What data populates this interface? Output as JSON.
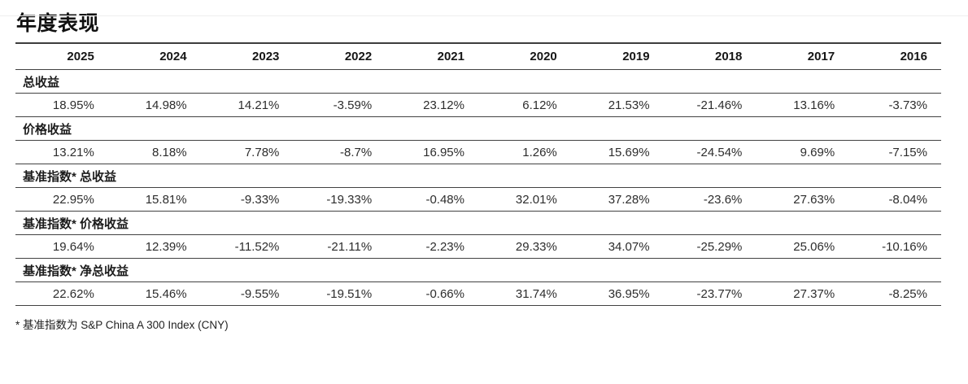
{
  "page": {
    "title": "年度表现",
    "footnote": "* 基准指数为 S&P China A 300 Index (CNY)"
  },
  "chart_data": {
    "type": "table",
    "title": "年度表现",
    "columns": [
      "2025",
      "2024",
      "2023",
      "2022",
      "2021",
      "2020",
      "2019",
      "2018",
      "2017",
      "2016"
    ],
    "rows": [
      {
        "label": "总收益",
        "values": [
          "18.95%",
          "14.98%",
          "14.21%",
          "-3.59%",
          "23.12%",
          "6.12%",
          "21.53%",
          "-21.46%",
          "13.16%",
          "-3.73%"
        ]
      },
      {
        "label": "价格收益",
        "values": [
          "13.21%",
          "8.18%",
          "7.78%",
          "-8.7%",
          "16.95%",
          "1.26%",
          "15.69%",
          "-24.54%",
          "9.69%",
          "-7.15%"
        ]
      },
      {
        "label": "基准指数* 总收益",
        "values": [
          "22.95%",
          "15.81%",
          "-9.33%",
          "-19.33%",
          "-0.48%",
          "32.01%",
          "37.28%",
          "-23.6%",
          "27.63%",
          "-8.04%"
        ]
      },
      {
        "label": "基准指数* 价格收益",
        "values": [
          "19.64%",
          "12.39%",
          "-11.52%",
          "-21.11%",
          "-2.23%",
          "29.33%",
          "34.07%",
          "-25.29%",
          "25.06%",
          "-10.16%"
        ]
      },
      {
        "label": "基准指数* 净总收益",
        "values": [
          "22.62%",
          "15.46%",
          "-9.55%",
          "-19.51%",
          "-0.66%",
          "31.74%",
          "36.95%",
          "-23.77%",
          "27.37%",
          "-8.25%"
        ]
      }
    ],
    "footnote": "* 基准指数为 S&P China A 300 Index (CNY)",
    "layout": {
      "columns_count": 10,
      "value_alignment": "right",
      "grid": "horizontal-rules-only"
    }
  }
}
